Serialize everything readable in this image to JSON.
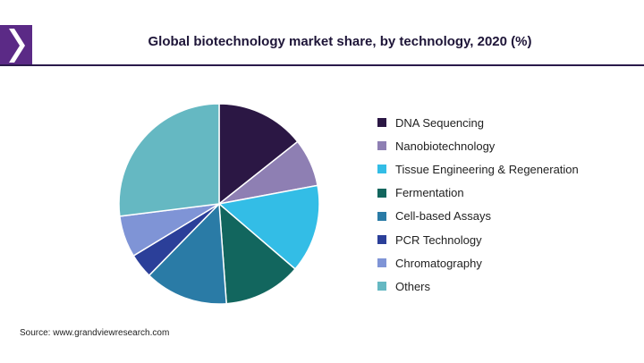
{
  "colors": {
    "accent": "#2a1a4a",
    "logo_purple": "#5b2a86",
    "logo_dark": "#2a1a4a"
  },
  "logo": {
    "icon": "grand-view-research-logo-icon"
  },
  "source": "Source: www.grandviewresearch.com",
  "chart_data": {
    "type": "pie",
    "title": "Global biotechnology market share, by technology, 2020 (%)",
    "start_angle_deg": 0,
    "direction": "clockwise",
    "legend_position": "right",
    "slices": [
      {
        "label": "DNA Sequencing",
        "value": 15.4,
        "color": "#2b1744"
      },
      {
        "label": "Nanobiotechnology",
        "value": 8.3,
        "color": "#8e7fb3"
      },
      {
        "label": "Tissue Engineering & Regeneration",
        "value": 15.3,
        "color": "#33bde6"
      },
      {
        "label": "Fermentation",
        "value": 13.5,
        "color": "#12665e"
      },
      {
        "label": "Cell-based Assays",
        "value": 14.5,
        "color": "#2a7ba6"
      },
      {
        "label": "PCR Technology",
        "value": 4.3,
        "color": "#2b3f99"
      },
      {
        "label": "Chromatography",
        "value": 7.2,
        "color": "#7f94d6"
      },
      {
        "label": "Others",
        "value": 29.0,
        "color": "#65b8c2"
      }
    ]
  }
}
